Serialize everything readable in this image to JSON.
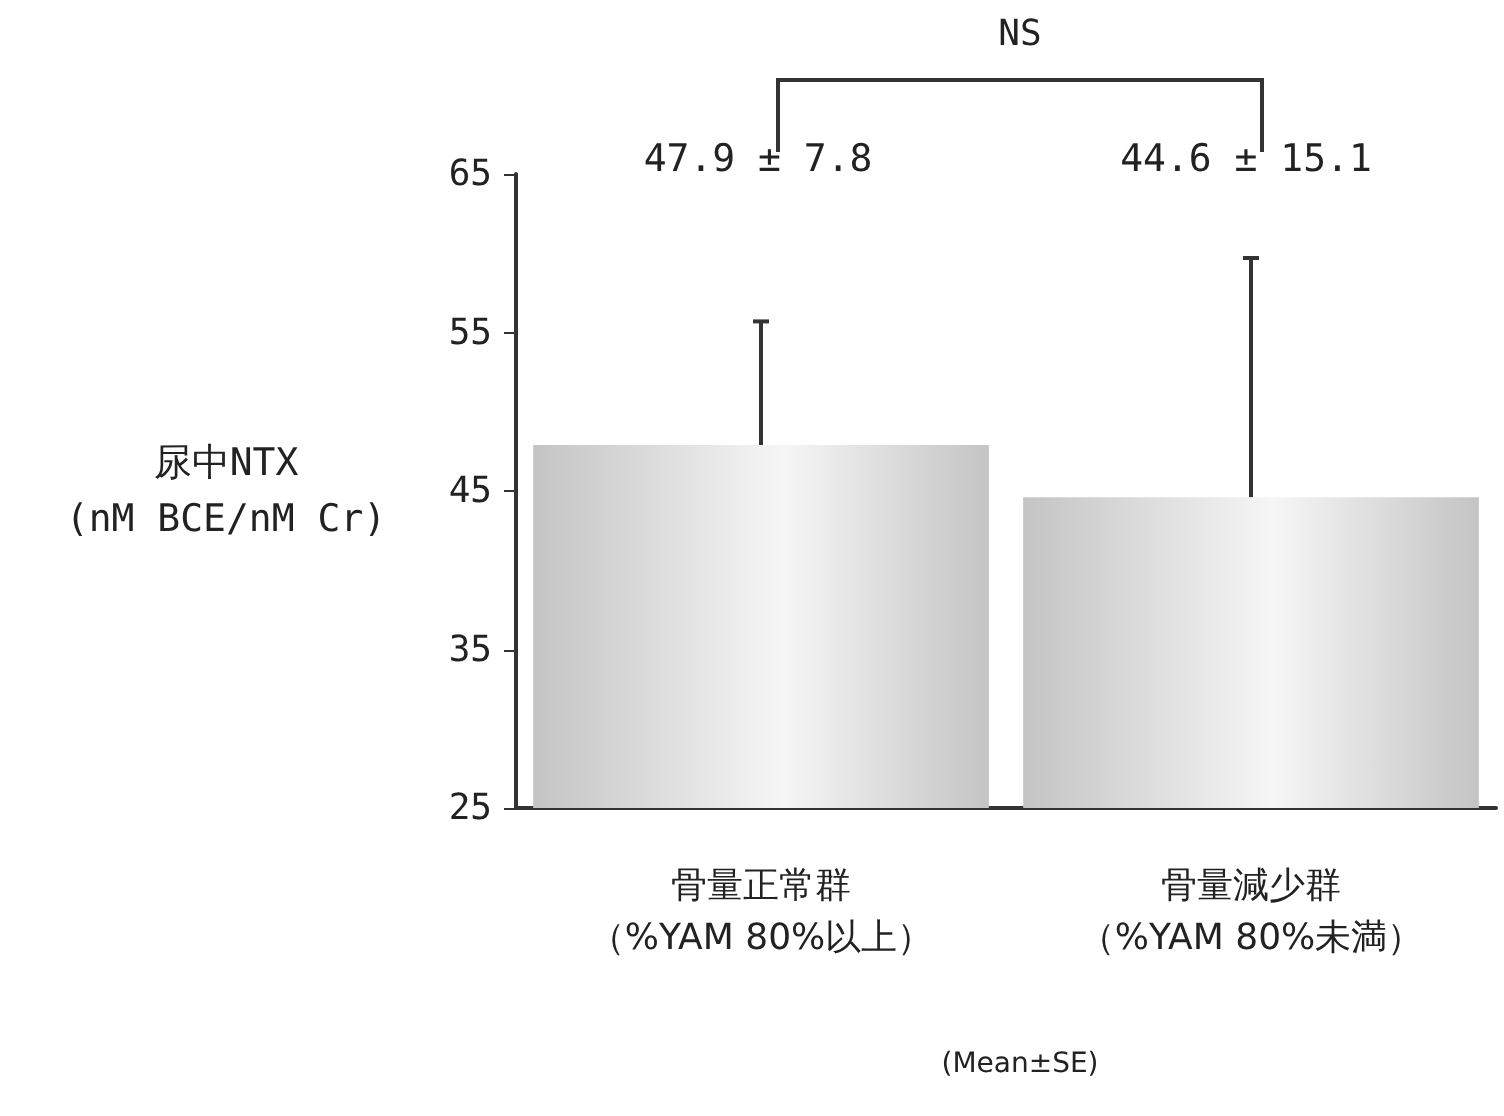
{
  "chart_data": {
    "type": "bar",
    "categories": [
      "骨量正常群（%YAM 80%以上）",
      "骨量減少群（%YAM 80%未満）"
    ],
    "values": [
      47.9,
      44.6
    ],
    "errors": [
      [
        47.9,
        55.7
      ],
      [
        44.6,
        59.7
      ]
    ],
    "color": "#c4c4c4",
    "ylabel": "尿中NTX\n(nM BCE/nM Cr)",
    "ylim": [
      25,
      65
    ],
    "yticks": [
      25,
      35,
      45,
      55,
      65
    ],
    "grid": false,
    "annotations": [
      "47.9 ± 7.8",
      "44.6 ± 15.1",
      "NS",
      "(Mean±SE)"
    ]
  }
}
